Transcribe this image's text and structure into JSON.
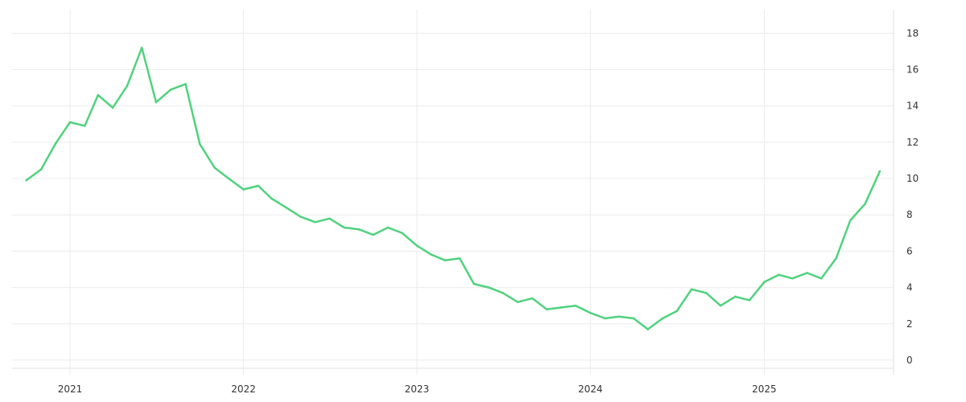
{
  "chart_data": {
    "type": "line",
    "title": "",
    "xlabel": "",
    "ylabel": "",
    "x_ticks": [
      {
        "label": "2021",
        "value": "2021-01-01"
      },
      {
        "label": "2022",
        "value": "2022-01-01"
      },
      {
        "label": "2023",
        "value": "2023-01-01"
      },
      {
        "label": "2024",
        "value": "2024-01-01"
      },
      {
        "label": "2025",
        "value": "2025-01-01"
      }
    ],
    "y_ticks": [
      0,
      2,
      4,
      6,
      8,
      10,
      12,
      14,
      16,
      18
    ],
    "xlim": [
      "2020-09-01",
      "2025-09-30"
    ],
    "ylim": [
      -0.8,
      19.3
    ],
    "y_axis_position": "right",
    "grid": true,
    "legend": "none",
    "colors": {
      "line": "#50d27e",
      "grid": "#ececec",
      "text": "#333333"
    },
    "series": [
      {
        "x": [
          "2020-10-01",
          "2020-11-01",
          "2020-12-01",
          "2021-01-01",
          "2021-02-01",
          "2021-03-01",
          "2021-04-01",
          "2021-05-01",
          "2021-06-01",
          "2021-07-01",
          "2021-08-01",
          "2021-09-01",
          "2021-10-01",
          "2021-11-01",
          "2021-12-01",
          "2022-01-01",
          "2022-02-01",
          "2022-03-01",
          "2022-04-01",
          "2022-05-01",
          "2022-06-01",
          "2022-07-01",
          "2022-08-01",
          "2022-09-01",
          "2022-10-01",
          "2022-11-01",
          "2022-12-01",
          "2023-01-01",
          "2023-02-01",
          "2023-03-01",
          "2023-04-01",
          "2023-05-01",
          "2023-06-01",
          "2023-07-01",
          "2023-08-01",
          "2023-09-01",
          "2023-10-01",
          "2023-11-01",
          "2023-12-01",
          "2024-01-01",
          "2024-02-01",
          "2024-03-01",
          "2024-04-01",
          "2024-05-01",
          "2024-06-01",
          "2024-07-01",
          "2024-08-01",
          "2024-09-01",
          "2024-10-01",
          "2024-11-01",
          "2024-12-01",
          "2025-01-01",
          "2025-02-01",
          "2025-03-01",
          "2025-04-01",
          "2025-05-01",
          "2025-06-01",
          "2025-07-01",
          "2025-08-01",
          "2025-09-01"
        ],
        "values": [
          9.9,
          10.5,
          11.9,
          13.1,
          12.9,
          14.6,
          13.9,
          15.1,
          17.2,
          14.2,
          14.9,
          15.2,
          11.9,
          10.6,
          10.0,
          9.4,
          9.6,
          8.9,
          8.4,
          7.9,
          7.6,
          7.8,
          7.3,
          7.2,
          6.9,
          7.3,
          7.0,
          6.3,
          5.8,
          5.5,
          5.6,
          4.2,
          4.0,
          3.7,
          3.2,
          3.4,
          2.8,
          2.9,
          3.0,
          2.6,
          2.3,
          2.4,
          2.3,
          1.7,
          2.3,
          2.7,
          3.9,
          3.7,
          3.0,
          3.5,
          3.3,
          4.3,
          4.7,
          4.5,
          4.8,
          4.5,
          5.6,
          7.7,
          8.6,
          10.4
        ]
      }
    ]
  }
}
